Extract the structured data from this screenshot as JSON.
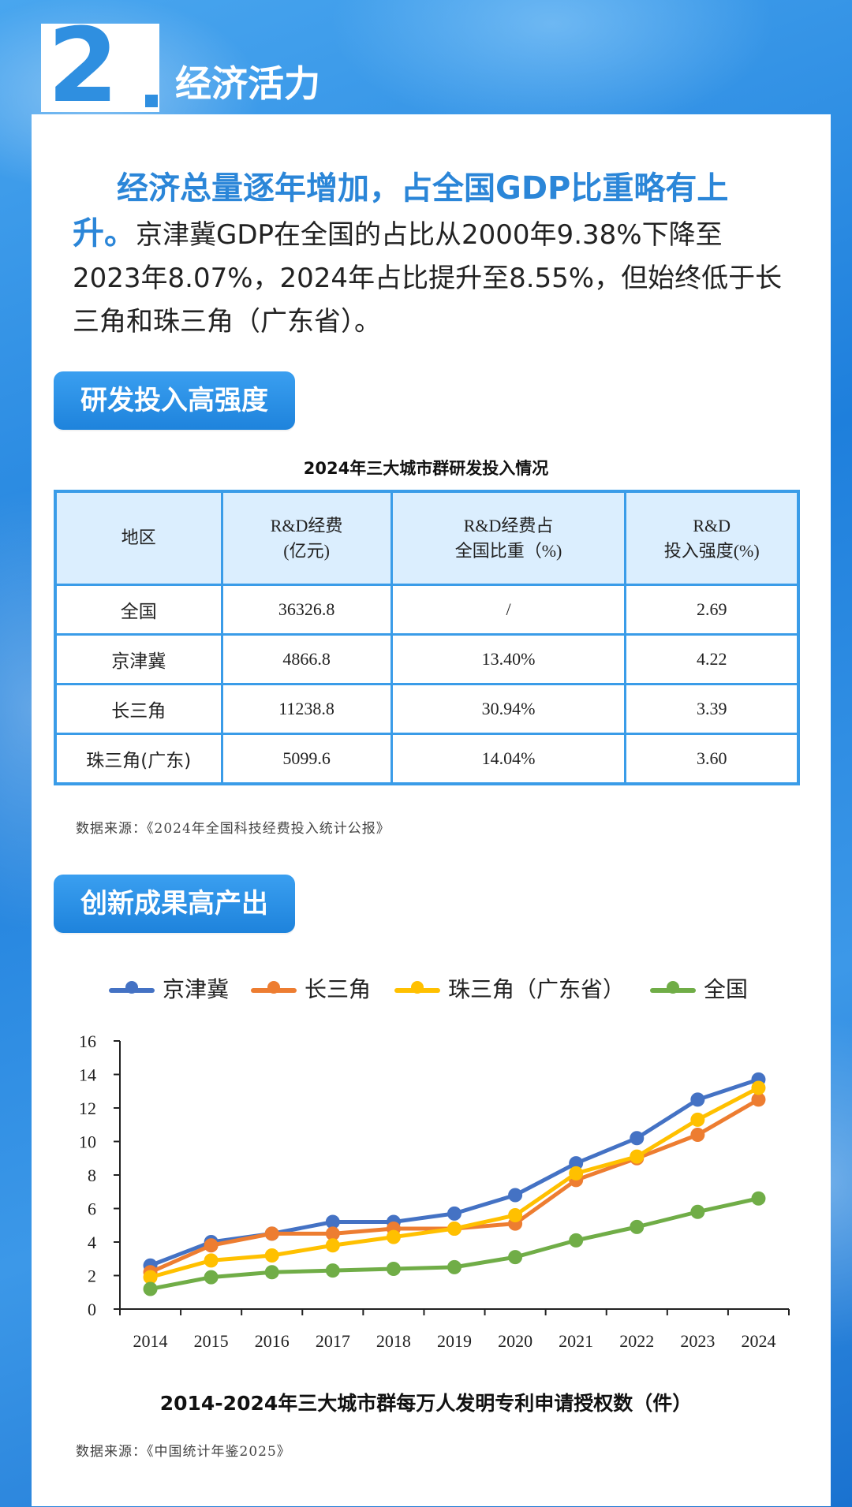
{
  "header": {
    "number": "2",
    "title": "经济活力"
  },
  "intro": {
    "lead": "经济总量逐年增加，占全国GDP比重略有上升。",
    "body": "京津冀GDP在全国的占比从2000年9.38%下降至2023年8.07%，2024年占比提升至8.55%，但始终低于长三角和珠三角（广东省）。"
  },
  "section1": {
    "label": "研发投入高强度"
  },
  "rd_table": {
    "title": "2024年三大城市群研发投入情况",
    "headers": [
      [
        "地区"
      ],
      [
        "R&D经费",
        "(亿元)"
      ],
      [
        "R&D经费占",
        "全国比重（%)"
      ],
      [
        "R&D",
        "投入强度(%)"
      ]
    ],
    "rows": [
      [
        "全国",
        "36326.8",
        "/",
        "2.69"
      ],
      [
        "京津冀",
        "4866.8",
        "13.40%",
        "4.22"
      ],
      [
        "长三角",
        "11238.8",
        "30.94%",
        "3.39"
      ],
      [
        "珠三角(广东)",
        "5099.6",
        "14.04%",
        "3.60"
      ]
    ],
    "source": "数据来源：《2024年全国科技经费投入统计公报》"
  },
  "section2": {
    "label": "创新成果高产出"
  },
  "colors": {
    "accent": "#2f8fe0",
    "jingjinji": "#4472c4",
    "changsanjiao": "#ed7d31",
    "zhusanjiao": "#ffc000",
    "quanguo": "#70ad47"
  },
  "chart_data": {
    "type": "line",
    "title": "2014-2024年三大城市群每万人发明专利申请授权数（件）",
    "xlabel": "",
    "ylabel": "",
    "x": [
      "2014",
      "2015",
      "2016",
      "2017",
      "2018",
      "2019",
      "2020",
      "2021",
      "2022",
      "2023",
      "2024"
    ],
    "ylim": [
      0,
      16
    ],
    "yticks": [
      "0",
      "2",
      "4",
      "6",
      "8",
      "10",
      "12",
      "14",
      "16"
    ],
    "legend_position": "top",
    "series": [
      {
        "name": "京津冀",
        "color": "#4472c4",
        "values": [
          2.6,
          4.0,
          4.5,
          5.2,
          5.2,
          5.7,
          6.8,
          8.7,
          10.2,
          12.5,
          13.7
        ]
      },
      {
        "name": "长三角",
        "color": "#ed7d31",
        "values": [
          2.2,
          3.8,
          4.5,
          4.5,
          4.8,
          4.8,
          5.1,
          7.7,
          9.0,
          10.4,
          12.5
        ]
      },
      {
        "name": "珠三角（广东省）",
        "color": "#ffc000",
        "values": [
          1.9,
          2.9,
          3.2,
          3.8,
          4.3,
          4.8,
          5.6,
          8.1,
          9.1,
          11.3,
          13.2
        ]
      },
      {
        "name": "全国",
        "color": "#70ad47",
        "values": [
          1.2,
          1.9,
          2.2,
          2.3,
          2.4,
          2.5,
          3.1,
          4.1,
          4.9,
          5.8,
          6.6
        ]
      }
    ],
    "source": "数据来源：《中国统计年鉴2025》"
  }
}
